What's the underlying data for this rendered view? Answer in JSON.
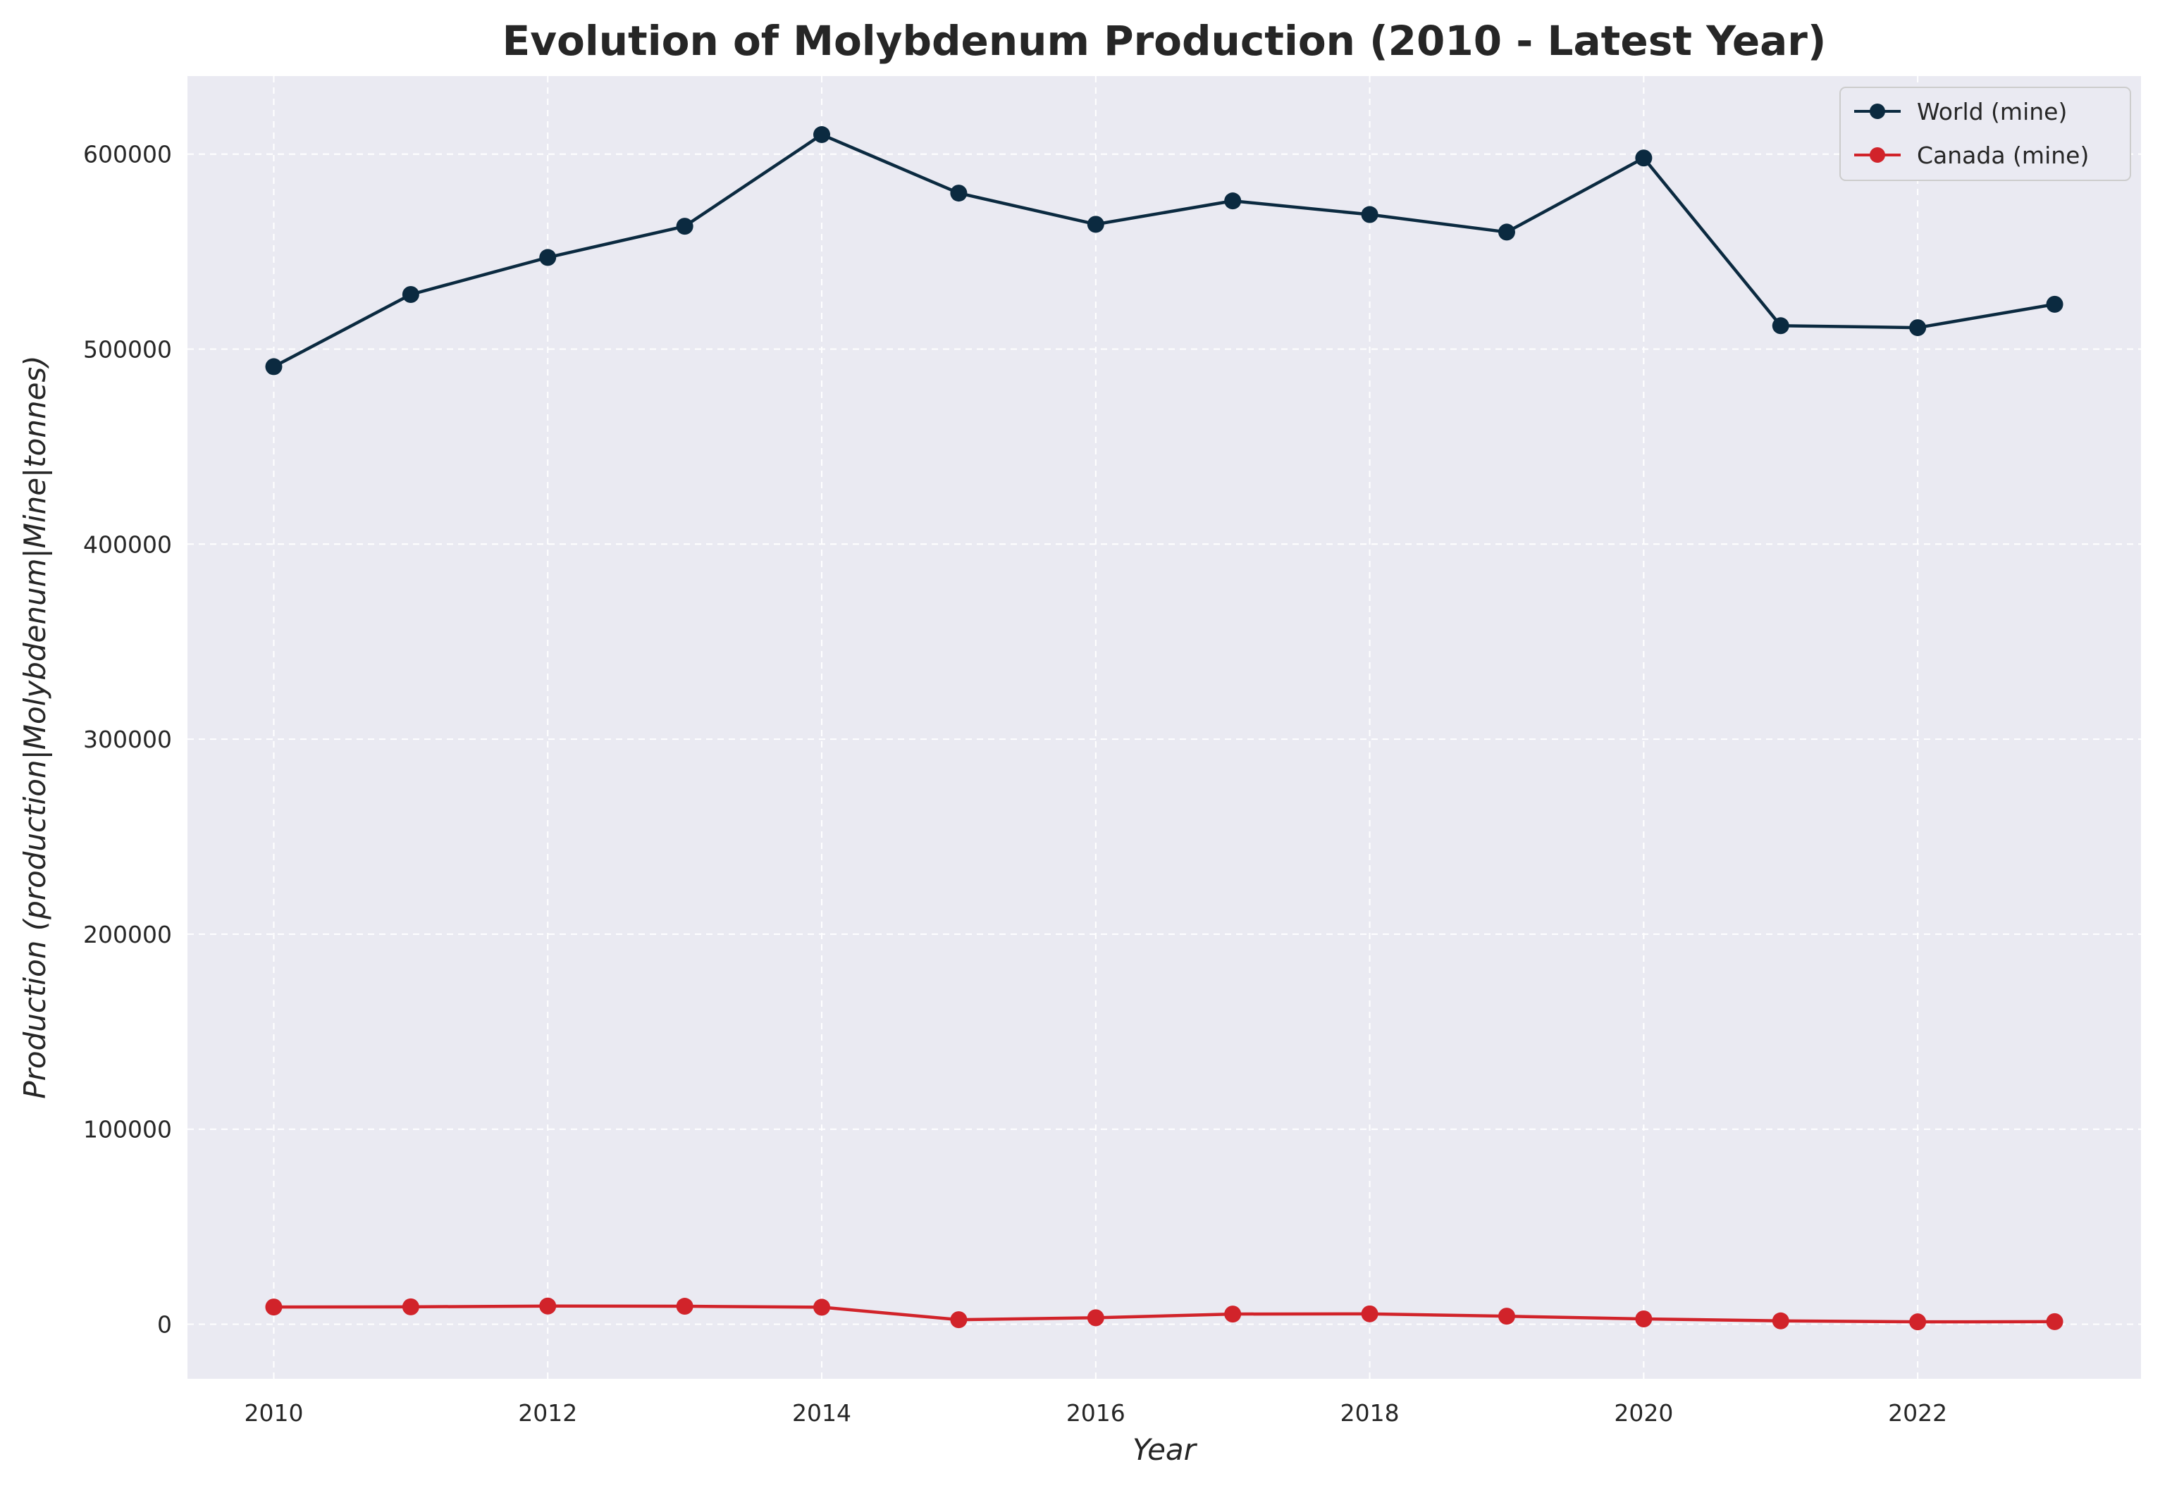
{
  "chart_data": {
    "type": "line",
    "title": "Evolution of Molybdenum Production (2010 - Latest Year)",
    "xlabel": "Year",
    "ylabel": "Production (production|Molybdenum|Mine|tonnes)",
    "x": [
      2010,
      2011,
      2012,
      2013,
      2014,
      2015,
      2016,
      2017,
      2018,
      2019,
      2020,
      2021,
      2022,
      2023
    ],
    "series": [
      {
        "name": "World (mine)",
        "color": "#0b2a40",
        "values": [
          491000,
          528000,
          547000,
          563000,
          610000,
          580000,
          564000,
          576000,
          569000,
          560000,
          598000,
          512000,
          511000,
          523000
        ]
      },
      {
        "name": "Canada (mine)",
        "color": "#d1232a",
        "values": [
          8800,
          8900,
          9300,
          9200,
          8700,
          2300,
          3300,
          5200,
          5300,
          4100,
          2700,
          1700,
          1200,
          1300
        ]
      }
    ],
    "xlim": [
      2009.37,
      2023.63
    ],
    "ylim": [
      -28000,
      640000
    ],
    "xticks": [
      2010,
      2012,
      2014,
      2016,
      2018,
      2020,
      2022
    ],
    "yticks": [
      0,
      100000,
      200000,
      300000,
      400000,
      500000,
      600000
    ],
    "grid": true,
    "legend": "top-right",
    "background_color": "#eaeaf2",
    "grid_color": "#ffffff"
  }
}
